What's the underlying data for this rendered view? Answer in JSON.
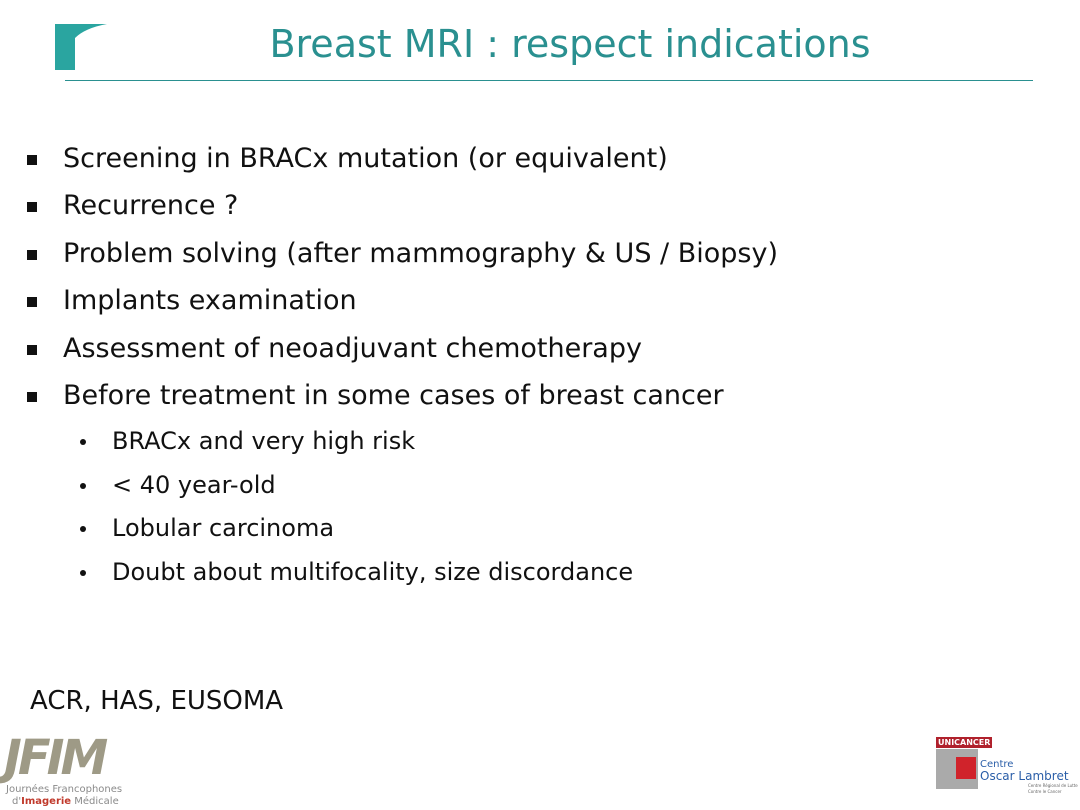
{
  "header": {
    "title": "Breast MRI : respect indications"
  },
  "bullets": [
    "Screening in BRACx mutation (or equivalent)",
    "Recurrence ?",
    "Problem solving (after mammography & US / Biopsy)",
    "Implants examination",
    "Assessment of neoadjuvant chemotherapy",
    "Before treatment in some cases of breast cancer"
  ],
  "sub_bullets": [
    "BRACx and very high risk",
    "< 40 year-old",
    "Lobular carcinoma",
    "Doubt about multifocality, size discordance"
  ],
  "footer": {
    "references": "ACR, HAS, EUSOMA",
    "left_logo": {
      "mark": "JFIM",
      "line1": "Journées Francophones",
      "line2_prefix": "d'",
      "line2_bold": "Imagerie",
      "line2_rest": " Médicale"
    },
    "right_logo": {
      "badge": "UNICANCER",
      "line1": "Centre",
      "line2a": "Oscar",
      "line2b": "Lambret",
      "small1": "Centre Régional de Lutte",
      "small2": "Contre le Cancer"
    }
  }
}
